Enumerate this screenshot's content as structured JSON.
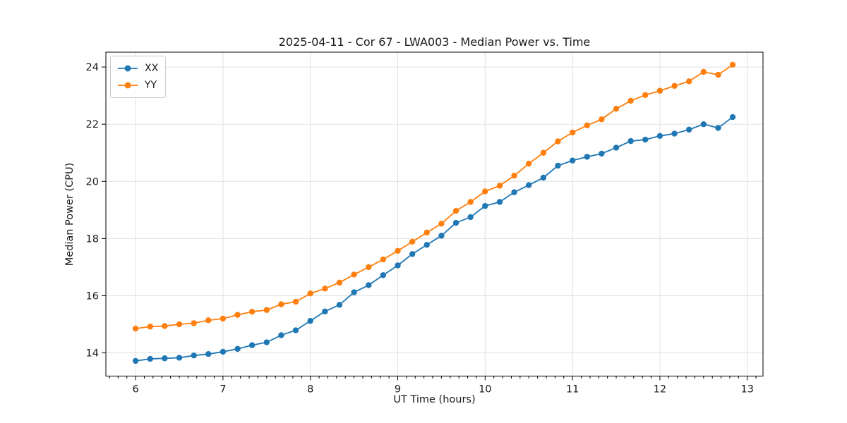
{
  "chart_data": {
    "type": "line",
    "title": "2025-04-11 - Cor 67 - LWA003 - Median Power vs. Time",
    "xlabel": "UT Time (hours)",
    "ylabel": "Median Power (CPU)",
    "xlim": [
      5.66,
      13.18
    ],
    "ylim": [
      13.19,
      24.52
    ],
    "xticks": [
      6,
      7,
      8,
      9,
      10,
      11,
      12,
      13
    ],
    "yticks": [
      14,
      16,
      18,
      20,
      22,
      24
    ],
    "x_minor_tick_step": 0.1,
    "grid": true,
    "grid_color": "#e0e0e0",
    "spine_color": "#000000",
    "legend_position": "upper-left",
    "marker": "circle",
    "x": [
      6.0,
      6.167,
      6.333,
      6.5,
      6.667,
      6.833,
      7.0,
      7.167,
      7.333,
      7.5,
      7.667,
      7.833,
      8.0,
      8.167,
      8.333,
      8.5,
      8.667,
      8.833,
      9.0,
      9.167,
      9.333,
      9.5,
      9.667,
      9.833,
      10.0,
      10.167,
      10.333,
      10.5,
      10.667,
      10.833,
      11.0,
      11.167,
      11.333,
      11.5,
      11.667,
      11.833,
      12.0,
      12.167,
      12.333,
      12.5,
      12.667,
      12.833
    ],
    "series": [
      {
        "name": "XX",
        "color": "#1f77b4",
        "values": [
          13.72,
          13.79,
          13.81,
          13.83,
          13.91,
          13.96,
          14.04,
          14.14,
          14.27,
          14.37,
          14.62,
          14.79,
          15.12,
          15.45,
          15.68,
          16.12,
          16.37,
          16.72,
          17.06,
          17.46,
          17.78,
          18.1,
          18.55,
          18.75,
          19.14,
          19.28,
          19.62,
          19.87,
          20.13,
          20.55,
          20.73,
          20.86,
          20.97,
          21.18,
          21.41,
          21.46,
          21.59,
          21.67,
          21.81,
          22.0,
          21.87,
          22.25
        ]
      },
      {
        "name": "YY",
        "color": "#ff7f0e",
        "values": [
          14.85,
          14.92,
          14.94,
          15.0,
          15.04,
          15.14,
          15.2,
          15.33,
          15.44,
          15.5,
          15.7,
          15.79,
          16.08,
          16.25,
          16.46,
          16.74,
          17.0,
          17.27,
          17.57,
          17.89,
          18.21,
          18.52,
          18.97,
          19.28,
          19.65,
          19.85,
          20.2,
          20.62,
          21.0,
          21.4,
          21.71,
          21.96,
          22.17,
          22.54,
          22.82,
          23.02,
          23.17,
          23.34,
          23.5,
          23.83,
          23.73,
          24.08
        ]
      }
    ]
  }
}
